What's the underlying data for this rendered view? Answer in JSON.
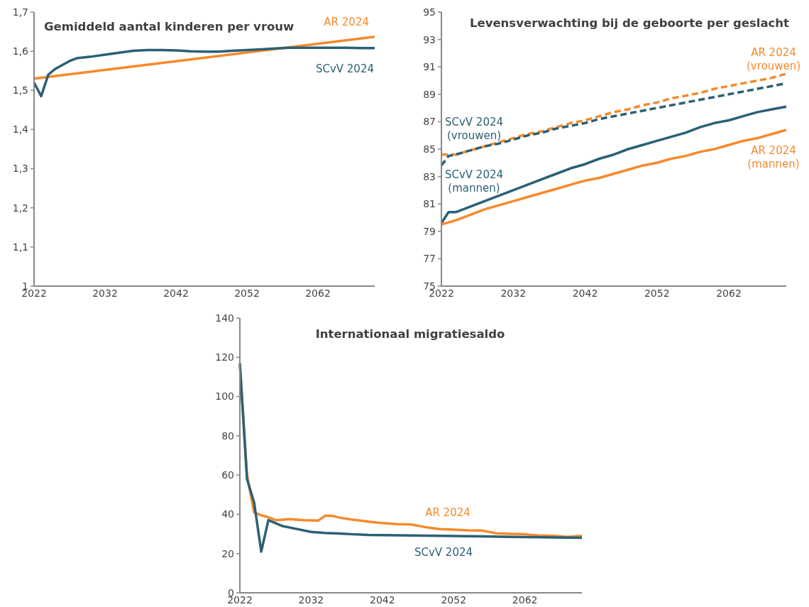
{
  "chart_data": [
    {
      "type": "line",
      "title": "Gemiddeld aantal kinderen per vrouw",
      "xlim": [
        2022,
        2070
      ],
      "xticks": [
        2022,
        2032,
        2042,
        2052,
        2062
      ],
      "ylim": [
        1,
        1.7
      ],
      "yticks": [
        {
          "value": 1,
          "label": "1"
        },
        {
          "value": 1.1,
          "label": "1,1"
        },
        {
          "value": 1.2,
          "label": "1,2"
        },
        {
          "value": 1.3,
          "label": "1,3"
        },
        {
          "value": 1.4,
          "label": "1,4"
        },
        {
          "value": 1.5,
          "label": "1,5"
        },
        {
          "value": 1.6,
          "label": "1,6"
        },
        {
          "value": 1.7,
          "label": "1,7"
        }
      ],
      "grid": false,
      "series": [
        {
          "name": "AR 2024",
          "color": "#f7892b",
          "x": [
            2022,
            2070
          ],
          "values": [
            1.53,
            1.637
          ]
        },
        {
          "name": "SCvV 2024",
          "color": "#2b6075",
          "x": [
            2022,
            2023,
            2024,
            2025,
            2026,
            2027,
            2028,
            2030,
            2032,
            2034,
            2036,
            2038,
            2040,
            2042,
            2044,
            2046,
            2048,
            2050,
            2052,
            2054,
            2056,
            2058,
            2060,
            2062,
            2064,
            2066,
            2068,
            2070
          ],
          "values": [
            1.52,
            1.485,
            1.54,
            1.555,
            1.565,
            1.575,
            1.582,
            1.586,
            1.591,
            1.596,
            1.601,
            1.603,
            1.603,
            1.602,
            1.6,
            1.599,
            1.599,
            1.601,
            1.603,
            1.605,
            1.607,
            1.609,
            1.609,
            1.609,
            1.609,
            1.609,
            1.608,
            1.608
          ]
        }
      ]
    },
    {
      "type": "line",
      "title": "Levensverwachting bij de geboorte per geslacht",
      "xlim": [
        2022,
        2070
      ],
      "xticks": [
        2022,
        2032,
        2042,
        2052,
        2062
      ],
      "ylim": [
        75,
        95
      ],
      "yticks": [
        75,
        77,
        79,
        81,
        83,
        85,
        87,
        89,
        91,
        93,
        95
      ],
      "grid": false,
      "series": [
        {
          "name": "AR 2024 (vrouwen)",
          "color": "#f7892b",
          "line_style": "dashed",
          "x": [
            2022,
            2024,
            2026,
            2028,
            2030,
            2032,
            2034,
            2036,
            2038,
            2040,
            2042,
            2044,
            2046,
            2048,
            2050,
            2052,
            2054,
            2056,
            2058,
            2060,
            2062,
            2064,
            2066,
            2068,
            2070
          ],
          "values": [
            84.6,
            84.6,
            84.9,
            85.2,
            85.5,
            85.8,
            86.1,
            86.3,
            86.6,
            86.9,
            87.1,
            87.4,
            87.7,
            87.9,
            88.2,
            88.4,
            88.7,
            88.9,
            89.1,
            89.4,
            89.6,
            89.8,
            90.0,
            90.2,
            90.5
          ]
        },
        {
          "name": "SCvV 2024 (vrouwen)",
          "color": "#2b6075",
          "line_style": "dashed",
          "x": [
            2022,
            2023,
            2024,
            2026,
            2028,
            2030,
            2032,
            2034,
            2036,
            2038,
            2040,
            2042,
            2044,
            2046,
            2048,
            2050,
            2052,
            2054,
            2056,
            2058,
            2060,
            2062,
            2064,
            2066,
            2068,
            2070
          ],
          "values": [
            83.8,
            84.5,
            84.6,
            84.9,
            85.2,
            85.4,
            85.7,
            86.0,
            86.2,
            86.5,
            86.7,
            86.9,
            87.2,
            87.4,
            87.6,
            87.8,
            88.0,
            88.2,
            88.4,
            88.6,
            88.8,
            89.0,
            89.2,
            89.4,
            89.6,
            89.8
          ]
        },
        {
          "name": "SCvV 2024 (mannen)",
          "color": "#2b6075",
          "line_style": "solid",
          "x": [
            2022,
            2023,
            2024,
            2026,
            2028,
            2030,
            2032,
            2034,
            2036,
            2038,
            2040,
            2042,
            2044,
            2046,
            2048,
            2050,
            2052,
            2054,
            2056,
            2058,
            2060,
            2062,
            2064,
            2066,
            2068,
            2070
          ],
          "values": [
            79.6,
            80.4,
            80.4,
            80.8,
            81.2,
            81.6,
            82.0,
            82.4,
            82.8,
            83.2,
            83.6,
            83.9,
            84.3,
            84.6,
            85.0,
            85.3,
            85.6,
            85.9,
            86.2,
            86.6,
            86.9,
            87.1,
            87.4,
            87.7,
            87.9,
            88.1
          ]
        },
        {
          "name": "AR 2024 (mannen)",
          "color": "#f7892b",
          "line_style": "solid",
          "x": [
            2022,
            2024,
            2026,
            2028,
            2030,
            2032,
            2034,
            2036,
            2038,
            2040,
            2042,
            2044,
            2046,
            2048,
            2050,
            2052,
            2054,
            2056,
            2058,
            2060,
            2062,
            2064,
            2066,
            2068,
            2070
          ],
          "values": [
            79.5,
            79.8,
            80.2,
            80.6,
            80.9,
            81.2,
            81.5,
            81.8,
            82.1,
            82.4,
            82.7,
            82.9,
            83.2,
            83.5,
            83.8,
            84.0,
            84.3,
            84.5,
            84.8,
            85.0,
            85.3,
            85.6,
            85.8,
            86.1,
            86.4
          ]
        }
      ]
    },
    {
      "type": "line",
      "title": "Internationaal migratiesaldo",
      "xlim": [
        2022,
        2070
      ],
      "xticks": [
        2022,
        2032,
        2042,
        2052,
        2062
      ],
      "ylim": [
        0,
        140
      ],
      "yticks": [
        0,
        20,
        40,
        60,
        80,
        100,
        120,
        140
      ],
      "grid": false,
      "series": [
        {
          "name": "AR 2024",
          "color": "#f7892b",
          "x": [
            2022,
            2023,
            2024,
            2025,
            2026,
            2027,
            2029,
            2031,
            2033,
            2034,
            2035,
            2036,
            2038,
            2040,
            2042,
            2044,
            2046,
            2048,
            2050,
            2052,
            2054,
            2056,
            2058,
            2060,
            2062,
            2064,
            2066,
            2068,
            2070
          ],
          "values": [
            116,
            60,
            41,
            39.5,
            38.5,
            37,
            37.5,
            37,
            36.8,
            39.3,
            39.2,
            38.3,
            37.2,
            36.3,
            35.5,
            35,
            34.8,
            33.5,
            32.5,
            32.2,
            31.8,
            31.7,
            30.3,
            30,
            29.8,
            29.2,
            29,
            28.5,
            29
          ]
        },
        {
          "name": "SCvV 2024",
          "color": "#2b6075",
          "x": [
            2022,
            2023,
            2024,
            2025,
            2026,
            2028,
            2030,
            2032,
            2034,
            2036,
            2038,
            2040,
            2044,
            2050,
            2056,
            2060,
            2066,
            2070
          ],
          "values": [
            117,
            58,
            46,
            21,
            37,
            34,
            32.5,
            31,
            30.5,
            30.2,
            29.8,
            29.5,
            29.3,
            29,
            28.8,
            28.5,
            28.2,
            28
          ]
        }
      ]
    }
  ]
}
